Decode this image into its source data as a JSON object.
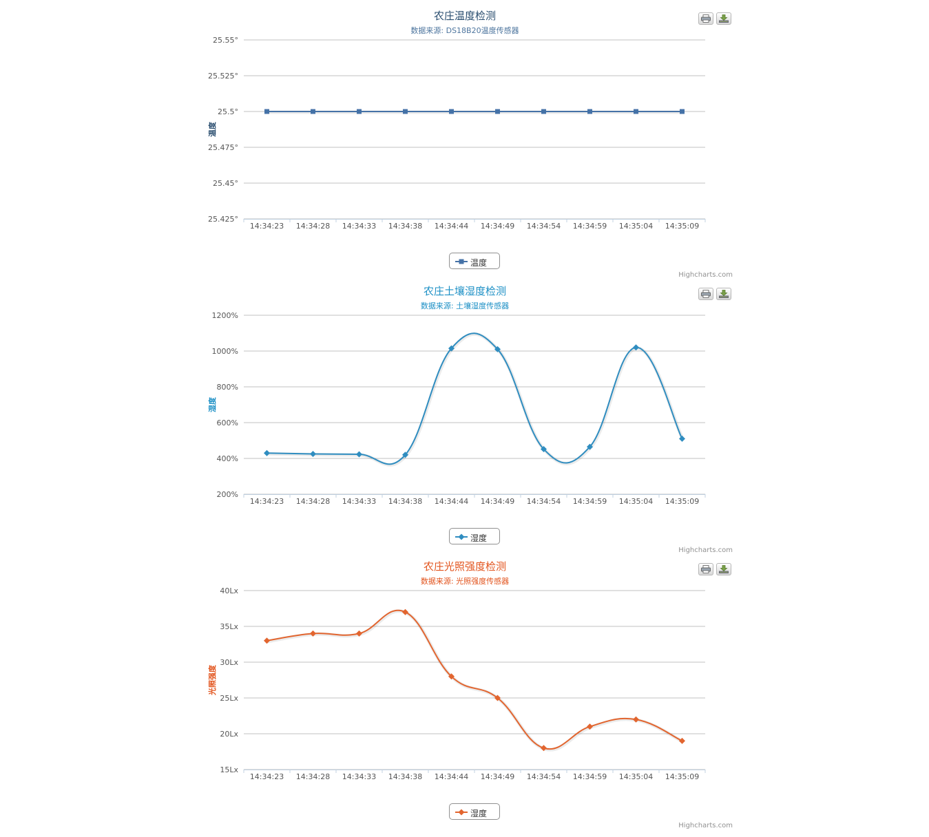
{
  "charts": [
    {
      "title": "农庄温度检测",
      "subtitle": "数据来源: DS18B20温度传感器",
      "title_color": "#274b6d",
      "subtitle_color": "#4d759e",
      "ylabel": "温度",
      "legend_label": "温度",
      "credits": "Highcharts.com",
      "print_icon": "print-icon",
      "download_icon": "download-icon",
      "series_color": "#4572a7",
      "marker": "square"
    },
    {
      "title": "农庄土壤湿度检测",
      "subtitle": "数据来源: 土壤湿度传感器",
      "title_color": "#1b8fc5",
      "subtitle_color": "#1b8fc5",
      "ylabel": "湿度",
      "legend_label": "湿度",
      "credits": "Highcharts.com",
      "print_icon": "print-icon",
      "download_icon": "download-icon",
      "series_color": "#2f8dc0",
      "marker": "diamond"
    },
    {
      "title": "农庄光照强度检测",
      "subtitle": "数据来源: 光照强度传感器",
      "title_color": "#e2531c",
      "subtitle_color": "#e2531c",
      "ylabel": "光照强度",
      "legend_label": "湿度",
      "credits": "Highcharts.com",
      "print_icon": "print-icon",
      "download_icon": "download-icon",
      "series_color": "#e2652f",
      "marker": "diamond"
    }
  ],
  "chart_data": [
    {
      "type": "line",
      "title": "农庄温度检测",
      "subtitle": "数据来源: DS18B20温度传感器",
      "ylabel": "温度",
      "categories": [
        "14:34:23",
        "14:34:28",
        "14:34:33",
        "14:34:38",
        "14:34:44",
        "14:34:49",
        "14:34:54",
        "14:34:59",
        "14:35:04",
        "14:35:09"
      ],
      "ylim": [
        25.425,
        25.55
      ],
      "yticks": [
        25.425,
        25.45,
        25.475,
        25.5,
        25.525,
        25.55
      ],
      "ytick_labels": [
        "25.425°",
        "25.45°",
        "25.475°",
        "25.5°",
        "25.525°",
        "25.55°"
      ],
      "smooth": false,
      "grid": true,
      "legend": "bottom",
      "series": [
        {
          "name": "温度",
          "values": [
            25.5,
            25.5,
            25.5,
            25.5,
            25.5,
            25.5,
            25.5,
            25.5,
            25.5,
            25.5
          ]
        }
      ]
    },
    {
      "type": "line",
      "title": "农庄土壤湿度检测",
      "subtitle": "数据来源: 土壤湿度传感器",
      "ylabel": "湿度",
      "categories": [
        "14:34:23",
        "14:34:28",
        "14:34:33",
        "14:34:38",
        "14:34:44",
        "14:34:49",
        "14:34:54",
        "14:34:59",
        "14:35:04",
        "14:35:09"
      ],
      "ylim": [
        200,
        1200
      ],
      "yticks": [
        200,
        400,
        600,
        800,
        1000,
        1200
      ],
      "ytick_labels": [
        "200%",
        "400%",
        "600%",
        "800%",
        "1000%",
        "1200%"
      ],
      "smooth": true,
      "grid": true,
      "legend": "bottom",
      "series": [
        {
          "name": "湿度",
          "values": [
            430,
            425,
            423,
            420,
            1015,
            1010,
            452,
            465,
            1020,
            510
          ]
        }
      ]
    },
    {
      "type": "line",
      "title": "农庄光照强度检测",
      "subtitle": "数据来源: 光照强度传感器",
      "ylabel": "光照强度",
      "categories": [
        "14:34:23",
        "14:34:28",
        "14:34:33",
        "14:34:38",
        "14:34:44",
        "14:34:49",
        "14:34:54",
        "14:34:59",
        "14:35:04",
        "14:35:09"
      ],
      "ylim": [
        15,
        40
      ],
      "yticks": [
        15,
        20,
        25,
        30,
        35,
        40
      ],
      "ytick_labels": [
        "15Lx",
        "20Lx",
        "25Lx",
        "30Lx",
        "35Lx",
        "40Lx"
      ],
      "smooth": true,
      "grid": true,
      "legend": "bottom",
      "series": [
        {
          "name": "湿度",
          "values": [
            33,
            34,
            34,
            37,
            28,
            25,
            18,
            21,
            22,
            19
          ]
        }
      ]
    }
  ]
}
